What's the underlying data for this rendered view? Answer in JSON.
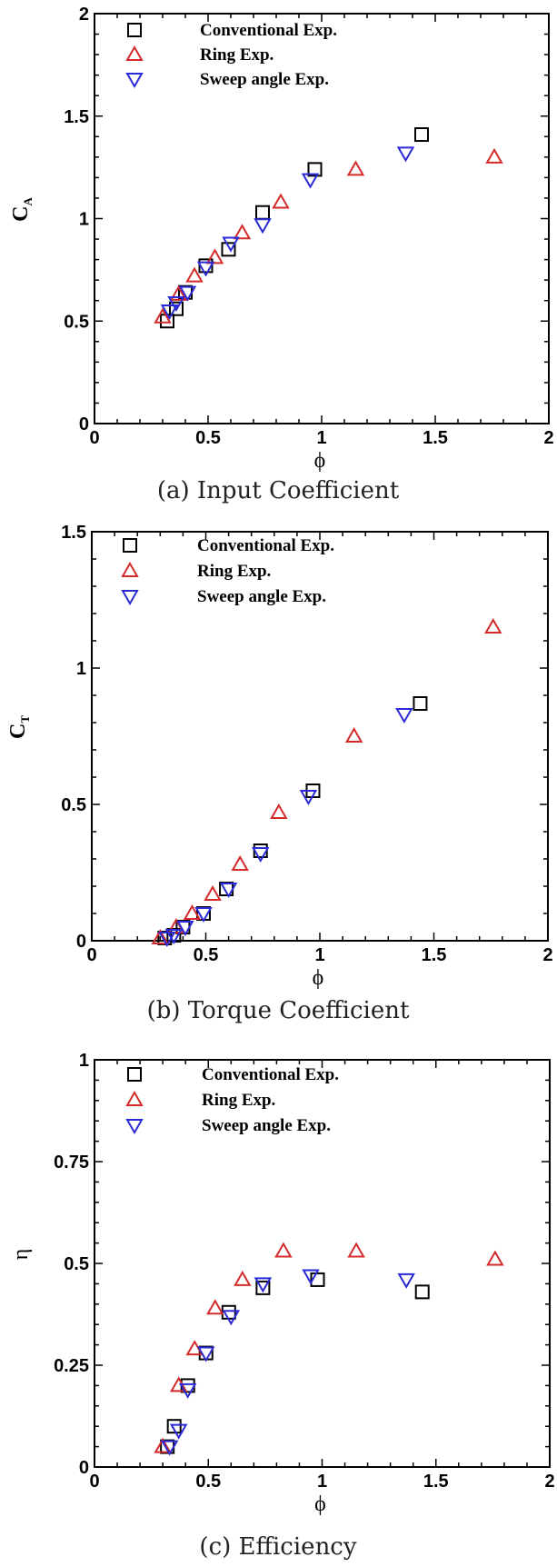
{
  "colors": {
    "conventional": "#000000",
    "ring": "#d42a2a",
    "sweep": "#2a2ad6"
  },
  "marker_shapes": {
    "conventional": "square",
    "ring": "triangle-up",
    "sweep": "triangle-down"
  },
  "chart_data": [
    {
      "type": "scatter",
      "caption": "(a)  Input  Coefficient",
      "xlabel": "ϕ",
      "ylabel": "C",
      "ylabel_sub": "A",
      "xlim": [
        0,
        2
      ],
      "ylim": [
        0,
        2
      ],
      "x_ticks": [
        "0",
        "0.5",
        "1",
        "1.5",
        "2"
      ],
      "y_ticks": [
        "0",
        "0.5",
        "1",
        "1.5",
        "2"
      ],
      "y_tick_values": [
        0,
        0.5,
        1,
        1.5,
        2
      ],
      "legend_position": "top-left",
      "series": [
        {
          "name": "Conventional Exp.",
          "key": "conventional",
          "x": [
            0.32,
            0.36,
            0.4,
            0.49,
            0.59,
            0.74,
            0.97,
            1.44
          ],
          "y": [
            0.5,
            0.56,
            0.64,
            0.77,
            0.85,
            1.03,
            1.24,
            1.41
          ]
        },
        {
          "name": "Ring Exp.",
          "key": "ring",
          "x": [
            0.3,
            0.37,
            0.44,
            0.53,
            0.65,
            0.82,
            1.15,
            1.76
          ],
          "y": [
            0.52,
            0.63,
            0.72,
            0.81,
            0.93,
            1.08,
            1.24,
            1.3
          ]
        },
        {
          "name": "Sweep angle Exp.",
          "key": "sweep",
          "x": [
            0.33,
            0.36,
            0.41,
            0.49,
            0.6,
            0.74,
            0.95,
            1.37
          ],
          "y": [
            0.55,
            0.59,
            0.64,
            0.76,
            0.88,
            0.97,
            1.19,
            1.32
          ]
        }
      ]
    },
    {
      "type": "scatter",
      "caption": "(b)  Torque  Coefficient",
      "xlabel": "ϕ",
      "ylabel": "C",
      "ylabel_sub": "T",
      "xlim": [
        0,
        2
      ],
      "ylim": [
        0,
        1.5
      ],
      "x_ticks": [
        "0",
        "0.5",
        "1",
        "1.5",
        "2"
      ],
      "y_ticks": [
        "0",
        "0.5",
        "1",
        "1.5"
      ],
      "y_tick_values": [
        0,
        0.5,
        1,
        1.5
      ],
      "legend_position": "top-left",
      "series": [
        {
          "name": "Conventional Exp.",
          "key": "conventional",
          "x": [
            0.32,
            0.36,
            0.4,
            0.49,
            0.59,
            0.74,
            0.97,
            1.44
          ],
          "y": [
            0.01,
            0.02,
            0.05,
            0.1,
            0.19,
            0.33,
            0.55,
            0.87
          ]
        },
        {
          "name": "Ring Exp.",
          "key": "ring",
          "x": [
            0.3,
            0.37,
            0.44,
            0.53,
            0.65,
            0.82,
            1.15,
            1.76
          ],
          "y": [
            0.01,
            0.05,
            0.1,
            0.17,
            0.28,
            0.47,
            0.75,
            1.15
          ]
        },
        {
          "name": "Sweep angle Exp.",
          "key": "sweep",
          "x": [
            0.33,
            0.36,
            0.41,
            0.49,
            0.6,
            0.74,
            0.95,
            1.37
          ],
          "y": [
            0.01,
            0.02,
            0.05,
            0.1,
            0.19,
            0.32,
            0.53,
            0.83
          ]
        }
      ]
    },
    {
      "type": "scatter",
      "caption": "(c)  Efficiency",
      "xlabel": "ϕ",
      "ylabel": "η",
      "ylabel_sub": "",
      "xlim": [
        0,
        2
      ],
      "ylim": [
        0,
        1
      ],
      "x_ticks": [
        "0",
        "0.5",
        "1",
        "1.5",
        "2"
      ],
      "y_ticks": [
        "0",
        "0.25",
        "0.5",
        "0.75",
        "1"
      ],
      "y_tick_values": [
        0,
        0.25,
        0.5,
        0.75,
        1
      ],
      "legend_position": "top-left",
      "series": [
        {
          "name": "Conventional Exp.",
          "key": "conventional",
          "x": [
            0.32,
            0.35,
            0.41,
            0.49,
            0.59,
            0.74,
            0.98,
            1.44
          ],
          "y": [
            0.05,
            0.1,
            0.2,
            0.28,
            0.38,
            0.44,
            0.46,
            0.43
          ]
        },
        {
          "name": "Ring Exp.",
          "key": "ring",
          "x": [
            0.3,
            0.37,
            0.44,
            0.53,
            0.65,
            0.83,
            1.15,
            1.76
          ],
          "y": [
            0.05,
            0.2,
            0.29,
            0.39,
            0.46,
            0.53,
            0.53,
            0.51
          ]
        },
        {
          "name": "Sweep angle Exp.",
          "key": "sweep",
          "x": [
            0.33,
            0.37,
            0.41,
            0.49,
            0.6,
            0.74,
            0.95,
            1.37
          ],
          "y": [
            0.05,
            0.09,
            0.19,
            0.28,
            0.37,
            0.45,
            0.47,
            0.46
          ]
        }
      ]
    }
  ]
}
